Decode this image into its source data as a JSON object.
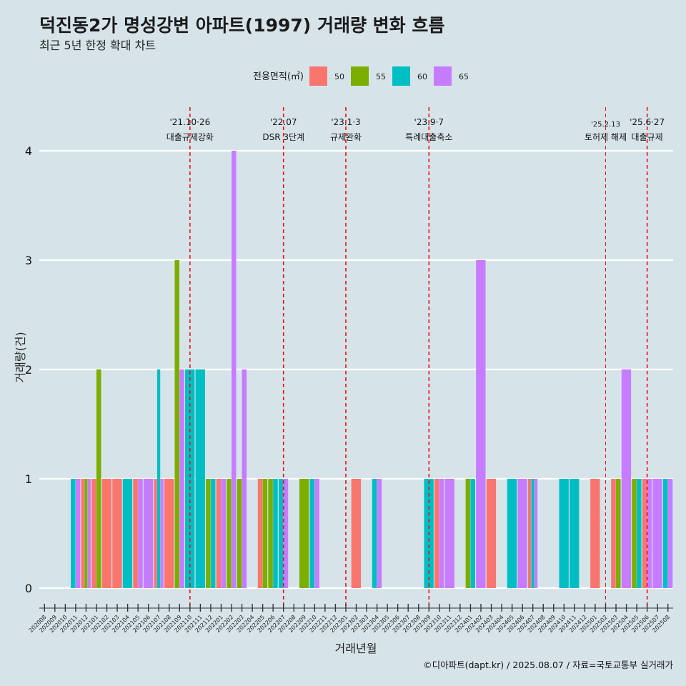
{
  "chart_data": {
    "type": "bar",
    "title": "덕진동2가 명성강변 아파트(1997) 거래량 변화 흐름",
    "subtitle": "최근 5년 한정 확대 차트",
    "xlabel": "거래년월",
    "ylabel": "거래량(건)",
    "caption": "©디아파트(dapt.kr) / 2025.08.07 / 자료=국토교통부 실거래가",
    "legend": {
      "title": "전용면적(㎡)",
      "position": "top"
    },
    "ylim": [
      0,
      4
    ],
    "yticks": [
      0,
      1,
      2,
      3,
      4
    ],
    "grid": true,
    "categories": [
      "202008",
      "202009",
      "202010",
      "202011",
      "202012",
      "202101",
      "202102",
      "202103",
      "202104",
      "202105",
      "202106",
      "202107",
      "202108",
      "202109",
      "202110",
      "202111",
      "202112",
      "202201",
      "202202",
      "202203",
      "202204",
      "202205",
      "202206",
      "202207",
      "202208",
      "202209",
      "202210",
      "202211",
      "202212",
      "202301",
      "202302",
      "202303",
      "202304",
      "202305",
      "202306",
      "202307",
      "202308",
      "202309",
      "202310",
      "202311",
      "202312",
      "202401",
      "202402",
      "202403",
      "202404",
      "202405",
      "202406",
      "202407",
      "202408",
      "202409",
      "202410",
      "202411",
      "202412",
      "202501",
      "202502",
      "202503",
      "202504",
      "202505",
      "202506",
      "202507",
      "202508"
    ],
    "series": [
      {
        "name": "50",
        "color": "#F8766D",
        "values": [
          0,
          0,
          0,
          0,
          1,
          1,
          1,
          1,
          0,
          1,
          0,
          1,
          1,
          0,
          0,
          0,
          0,
          1,
          0,
          0,
          0,
          1,
          0,
          0,
          0,
          0,
          0,
          0,
          0,
          0,
          1,
          0,
          0,
          0,
          0,
          0,
          0,
          0,
          1,
          0,
          0,
          0,
          0,
          1,
          0,
          0,
          0,
          1,
          0,
          0,
          0,
          0,
          0,
          1,
          0,
          1,
          0,
          0,
          1,
          0,
          0
        ]
      },
      {
        "name": "55",
        "color": "#7CAE00",
        "values": [
          0,
          0,
          0,
          0,
          1,
          2,
          0,
          0,
          0,
          0,
          0,
          0,
          0,
          3,
          0,
          0,
          1,
          0,
          1,
          1,
          0,
          1,
          1,
          0,
          0,
          1,
          0,
          0,
          0,
          0,
          0,
          0,
          0,
          0,
          0,
          0,
          0,
          0,
          0,
          0,
          0,
          1,
          0,
          0,
          0,
          0,
          0,
          0,
          0,
          0,
          0,
          0,
          0,
          0,
          0,
          1,
          0,
          1,
          0,
          0,
          0
        ]
      },
      {
        "name": "60",
        "color": "#00BFC4",
        "values": [
          0,
          0,
          0,
          1,
          0,
          0,
          0,
          0,
          1,
          0,
          0,
          2,
          0,
          0,
          2,
          2,
          1,
          0,
          0,
          0,
          0,
          0,
          1,
          1,
          0,
          0,
          1,
          0,
          0,
          0,
          0,
          0,
          1,
          0,
          0,
          0,
          0,
          1,
          0,
          0,
          0,
          1,
          0,
          0,
          0,
          1,
          0,
          1,
          0,
          0,
          1,
          1,
          0,
          0,
          0,
          0,
          0,
          1,
          0,
          0,
          1
        ]
      },
      {
        "name": "65",
        "color": "#C77CFF",
        "values": [
          0,
          0,
          0,
          1,
          1,
          0,
          0,
          0,
          0,
          1,
          1,
          1,
          0,
          2,
          0,
          0,
          0,
          1,
          4,
          2,
          0,
          0,
          0,
          1,
          0,
          0,
          1,
          0,
          0,
          0,
          0,
          0,
          1,
          0,
          0,
          0,
          0,
          0,
          1,
          1,
          0,
          0,
          3,
          0,
          0,
          0,
          1,
          1,
          0,
          0,
          0,
          0,
          0,
          0,
          0,
          0,
          2,
          0,
          1,
          1,
          1
        ]
      }
    ],
    "events": [
      {
        "at": "202110",
        "date": "'21.10·26",
        "label": "대출규제강화"
      },
      {
        "at": "202207",
        "date": "'22.07",
        "label": "DSR 3단계"
      },
      {
        "at": "202301",
        "date": "'23.1·3",
        "label": "규제완화"
      },
      {
        "at": "202309",
        "date": "'23.9·7",
        "label": "특례대출축소"
      },
      {
        "at": "202502",
        "date": "'25.2.13",
        "label": "토허제 해제"
      },
      {
        "at": "202506",
        "date": "'25.6·27",
        "label": "대출규제"
      }
    ]
  }
}
